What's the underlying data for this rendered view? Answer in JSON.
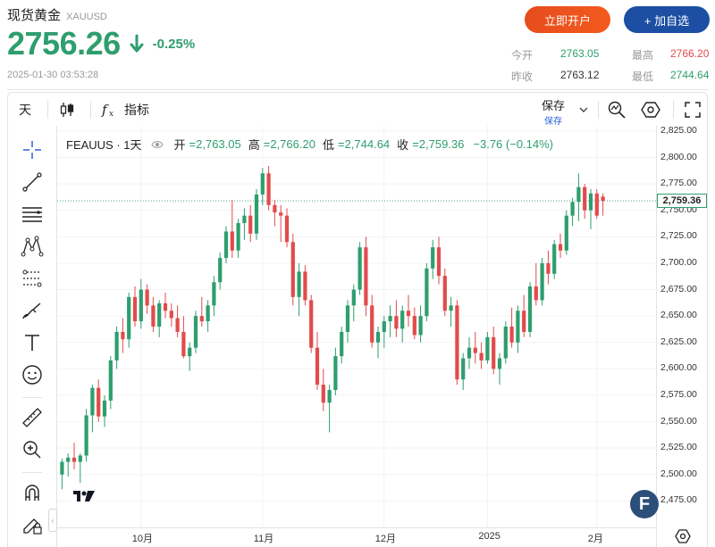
{
  "header": {
    "title": "现货黄金",
    "code": "XAUUSD",
    "price": "2756.26",
    "change": "-0.25%",
    "timestamp": "2025-01-30 03:53:28",
    "btn_open": "立即开户",
    "btn_add": "+ 加自选",
    "stats": {
      "open_label": "今开",
      "open_val": "2763.05",
      "high_label": "最高",
      "high_val": "2766.20",
      "prev_label": "昨收",
      "prev_val": "2763.12",
      "low_label": "最低",
      "low_val": "2744.64"
    },
    "colors": {
      "up": "#2e9e6e",
      "down": "#e24b4b",
      "high": "#e24b4b",
      "low": "#2e9e6e"
    }
  },
  "toolbar": {
    "interval": "天",
    "indicators": "指标",
    "save": "保存",
    "save_sub": "保存",
    "icons": [
      "candles-icon",
      "fx-icon",
      "chevron-down-icon",
      "compare-icon",
      "hexagon-icon",
      "fullscreen-icon"
    ]
  },
  "sidebar": {
    "tools": [
      "crosshair-icon",
      "trendline-icon",
      "fib-lines-icon",
      "pattern-icon",
      "projection-icon",
      "brush-icon",
      "text-icon",
      "emoji-icon",
      "ruler-icon",
      "zoom-in-icon",
      "magnet-icon",
      "pencil-lock-icon"
    ]
  },
  "legend": {
    "symbol": "FEAUUS · 1天",
    "o_label": "开",
    "o_val": "=2,763.05",
    "h_label": "高",
    "h_val": "=2,766.20",
    "l_label": "低",
    "l_val": "=2,744.64",
    "c_label": "收",
    "c_val": "=2,759.36",
    "chg": "−3.76 (−0.14%)"
  },
  "current_price_tag": "2,759.36",
  "chart_data": {
    "type": "candlestick",
    "title": "",
    "xlabel": "",
    "ylabel": "",
    "ylim": [
      2450,
      2830
    ],
    "y_ticks": [
      "2,825.00",
      "2,800.00",
      "2,775.00",
      "2,750.00",
      "2,725.00",
      "2,700.00",
      "2,675.00",
      "2,650.00",
      "2,625.00",
      "2,600.00",
      "2,575.00",
      "2,550.00",
      "2,525.00",
      "2,500.00",
      "2,475.00"
    ],
    "x_ticks": [
      "10月",
      "11月",
      "12月",
      "2025",
      "2月"
    ],
    "up_color": "#2e9e6e",
    "down_color": "#e24b4b",
    "candles": [
      [
        2500,
        2515,
        2486,
        2512
      ],
      [
        2512,
        2520,
        2498,
        2516
      ],
      [
        2516,
        2530,
        2505,
        2512
      ],
      [
        2512,
        2520,
        2492,
        2518
      ],
      [
        2518,
        2562,
        2512,
        2556
      ],
      [
        2556,
        2585,
        2540,
        2582
      ],
      [
        2582,
        2590,
        2550,
        2555
      ],
      [
        2555,
        2575,
        2545,
        2570
      ],
      [
        2570,
        2612,
        2562,
        2608
      ],
      [
        2608,
        2640,
        2600,
        2635
      ],
      [
        2635,
        2648,
        2615,
        2628
      ],
      [
        2628,
        2672,
        2620,
        2668
      ],
      [
        2668,
        2678,
        2640,
        2645
      ],
      [
        2645,
        2685,
        2638,
        2675
      ],
      [
        2675,
        2680,
        2652,
        2660
      ],
      [
        2660,
        2668,
        2635,
        2640
      ],
      [
        2640,
        2665,
        2630,
        2662
      ],
      [
        2662,
        2672,
        2648,
        2655
      ],
      [
        2655,
        2662,
        2640,
        2648
      ],
      [
        2648,
        2660,
        2630,
        2635
      ],
      [
        2635,
        2650,
        2610,
        2612
      ],
      [
        2612,
        2625,
        2598,
        2620
      ],
      [
        2620,
        2655,
        2615,
        2650
      ],
      [
        2650,
        2668,
        2640,
        2645
      ],
      [
        2645,
        2665,
        2635,
        2660
      ],
      [
        2660,
        2688,
        2650,
        2682
      ],
      [
        2682,
        2710,
        2675,
        2705
      ],
      [
        2705,
        2735,
        2700,
        2730
      ],
      [
        2730,
        2760,
        2705,
        2712
      ],
      [
        2712,
        2742,
        2705,
        2738
      ],
      [
        2738,
        2752,
        2722,
        2745
      ],
      [
        2745,
        2755,
        2720,
        2728
      ],
      [
        2728,
        2770,
        2722,
        2765
      ],
      [
        2765,
        2790,
        2755,
        2785
      ],
      [
        2785,
        2792,
        2750,
        2755
      ],
      [
        2755,
        2760,
        2735,
        2748
      ],
      [
        2748,
        2755,
        2720,
        2745
      ],
      [
        2745,
        2752,
        2715,
        2720
      ],
      [
        2720,
        2728,
        2660,
        2668
      ],
      [
        2668,
        2700,
        2650,
        2692
      ],
      [
        2692,
        2698,
        2660,
        2665
      ],
      [
        2665,
        2670,
        2615,
        2620
      ],
      [
        2620,
        2635,
        2580,
        2585
      ],
      [
        2585,
        2600,
        2560,
        2568
      ],
      [
        2568,
        2585,
        2540,
        2580
      ],
      [
        2580,
        2620,
        2575,
        2612
      ],
      [
        2612,
        2640,
        2605,
        2635
      ],
      [
        2635,
        2665,
        2625,
        2660
      ],
      [
        2660,
        2680,
        2645,
        2675
      ],
      [
        2675,
        2720,
        2670,
        2715
      ],
      [
        2715,
        2725,
        2650,
        2660
      ],
      [
        2660,
        2670,
        2620,
        2625
      ],
      [
        2625,
        2640,
        2610,
        2635
      ],
      [
        2635,
        2650,
        2620,
        2645
      ],
      [
        2645,
        2660,
        2630,
        2650
      ],
      [
        2650,
        2665,
        2630,
        2638
      ],
      [
        2638,
        2660,
        2625,
        2655
      ],
      [
        2655,
        2670,
        2640,
        2650
      ],
      [
        2650,
        2658,
        2628,
        2632
      ],
      [
        2632,
        2660,
        2625,
        2650
      ],
      [
        2650,
        2700,
        2645,
        2695
      ],
      [
        2695,
        2722,
        2685,
        2715
      ],
      [
        2715,
        2725,
        2680,
        2688
      ],
      [
        2688,
        2695,
        2650,
        2655
      ],
      [
        2655,
        2668,
        2640,
        2660
      ],
      [
        2660,
        2665,
        2585,
        2590
      ],
      [
        2590,
        2615,
        2580,
        2610
      ],
      [
        2610,
        2630,
        2600,
        2620
      ],
      [
        2620,
        2635,
        2605,
        2615
      ],
      [
        2615,
        2625,
        2600,
        2608
      ],
      [
        2608,
        2635,
        2605,
        2630
      ],
      [
        2630,
        2640,
        2595,
        2600
      ],
      [
        2600,
        2615,
        2585,
        2610
      ],
      [
        2610,
        2645,
        2605,
        2640
      ],
      [
        2640,
        2658,
        2620,
        2625
      ],
      [
        2625,
        2660,
        2615,
        2655
      ],
      [
        2655,
        2670,
        2630,
        2635
      ],
      [
        2635,
        2682,
        2630,
        2678
      ],
      [
        2678,
        2700,
        2660,
        2665
      ],
      [
        2665,
        2705,
        2660,
        2700
      ],
      [
        2700,
        2712,
        2680,
        2690
      ],
      [
        2690,
        2722,
        2685,
        2718
      ],
      [
        2718,
        2728,
        2705,
        2712
      ],
      [
        2712,
        2750,
        2708,
        2745
      ],
      [
        2745,
        2762,
        2735,
        2758
      ],
      [
        2758,
        2785,
        2740,
        2772
      ],
      [
        2772,
        2775,
        2742,
        2750
      ],
      [
        2750,
        2770,
        2732,
        2766
      ],
      [
        2766,
        2770,
        2742,
        2745
      ],
      [
        2763,
        2766,
        2745,
        2759
      ]
    ]
  }
}
